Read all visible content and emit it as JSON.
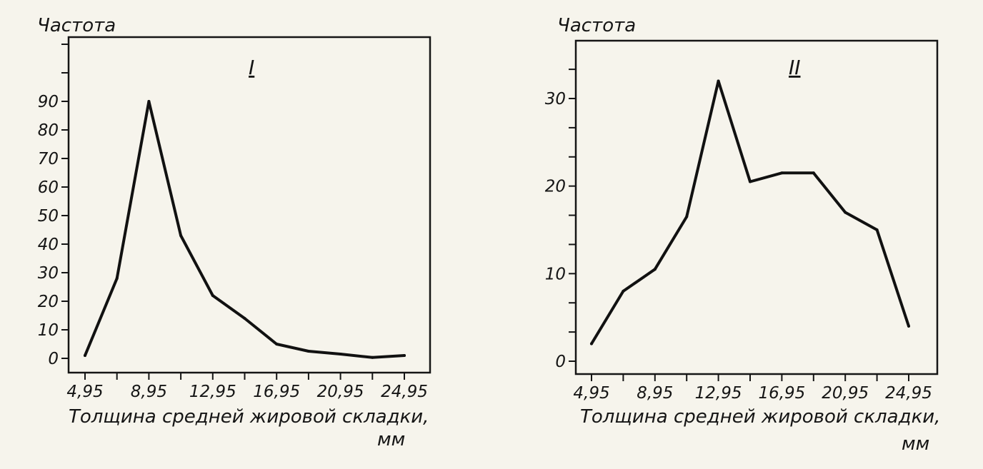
{
  "chart_data": [
    {
      "type": "line",
      "panel_label": "I",
      "ylabel": "Частота",
      "xlabel": "Толщина средней жировой складки,",
      "xunit": "мм",
      "x_tick_labels": [
        "4,95",
        "8,95",
        "12,95",
        "16,95",
        "20,95",
        "24,95"
      ],
      "x_ticks": [
        4.95,
        8.95,
        12.95,
        16.95,
        20.95,
        24.95
      ],
      "y_tick_labels": [
        "0",
        "10",
        "20",
        "30",
        "40",
        "50",
        "60",
        "70",
        "80",
        "90"
      ],
      "y_ticks": [
        0,
        10,
        20,
        30,
        40,
        50,
        60,
        70,
        80,
        90
      ],
      "xlim": [
        4.95,
        28.95
      ],
      "ylim": [
        -5,
        110
      ],
      "x": [
        4.95,
        6.95,
        8.95,
        10.95,
        12.95,
        14.95,
        16.95,
        18.95,
        20.95,
        22.95,
        24.95
      ],
      "values": [
        1,
        28,
        90,
        43,
        22,
        14,
        5,
        2.5,
        1.5,
        0.3,
        1
      ]
    },
    {
      "type": "line",
      "panel_label": "II",
      "ylabel": "Частота",
      "xlabel": "Толщина средней жировой складки,",
      "xunit": "мм",
      "x_tick_labels": [
        "4,95",
        "8,95",
        "12,95",
        "16,95",
        "20,95",
        "24,95"
      ],
      "x_ticks": [
        4.95,
        8.95,
        12.95,
        16.95,
        20.95,
        24.95
      ],
      "y_tick_labels": [
        "0",
        "10",
        "20",
        "30"
      ],
      "y_ticks": [
        0,
        10,
        20,
        30
      ],
      "xlim": [
        4.95,
        28.95
      ],
      "ylim": [
        -1,
        36
      ],
      "x": [
        4.95,
        6.95,
        8.95,
        10.95,
        12.95,
        14.95,
        16.95,
        18.95,
        20.95,
        22.95,
        24.95
      ],
      "values": [
        2,
        8,
        10.5,
        16.5,
        32,
        20.5,
        21.5,
        21.5,
        17,
        15,
        4
      ]
    }
  ]
}
